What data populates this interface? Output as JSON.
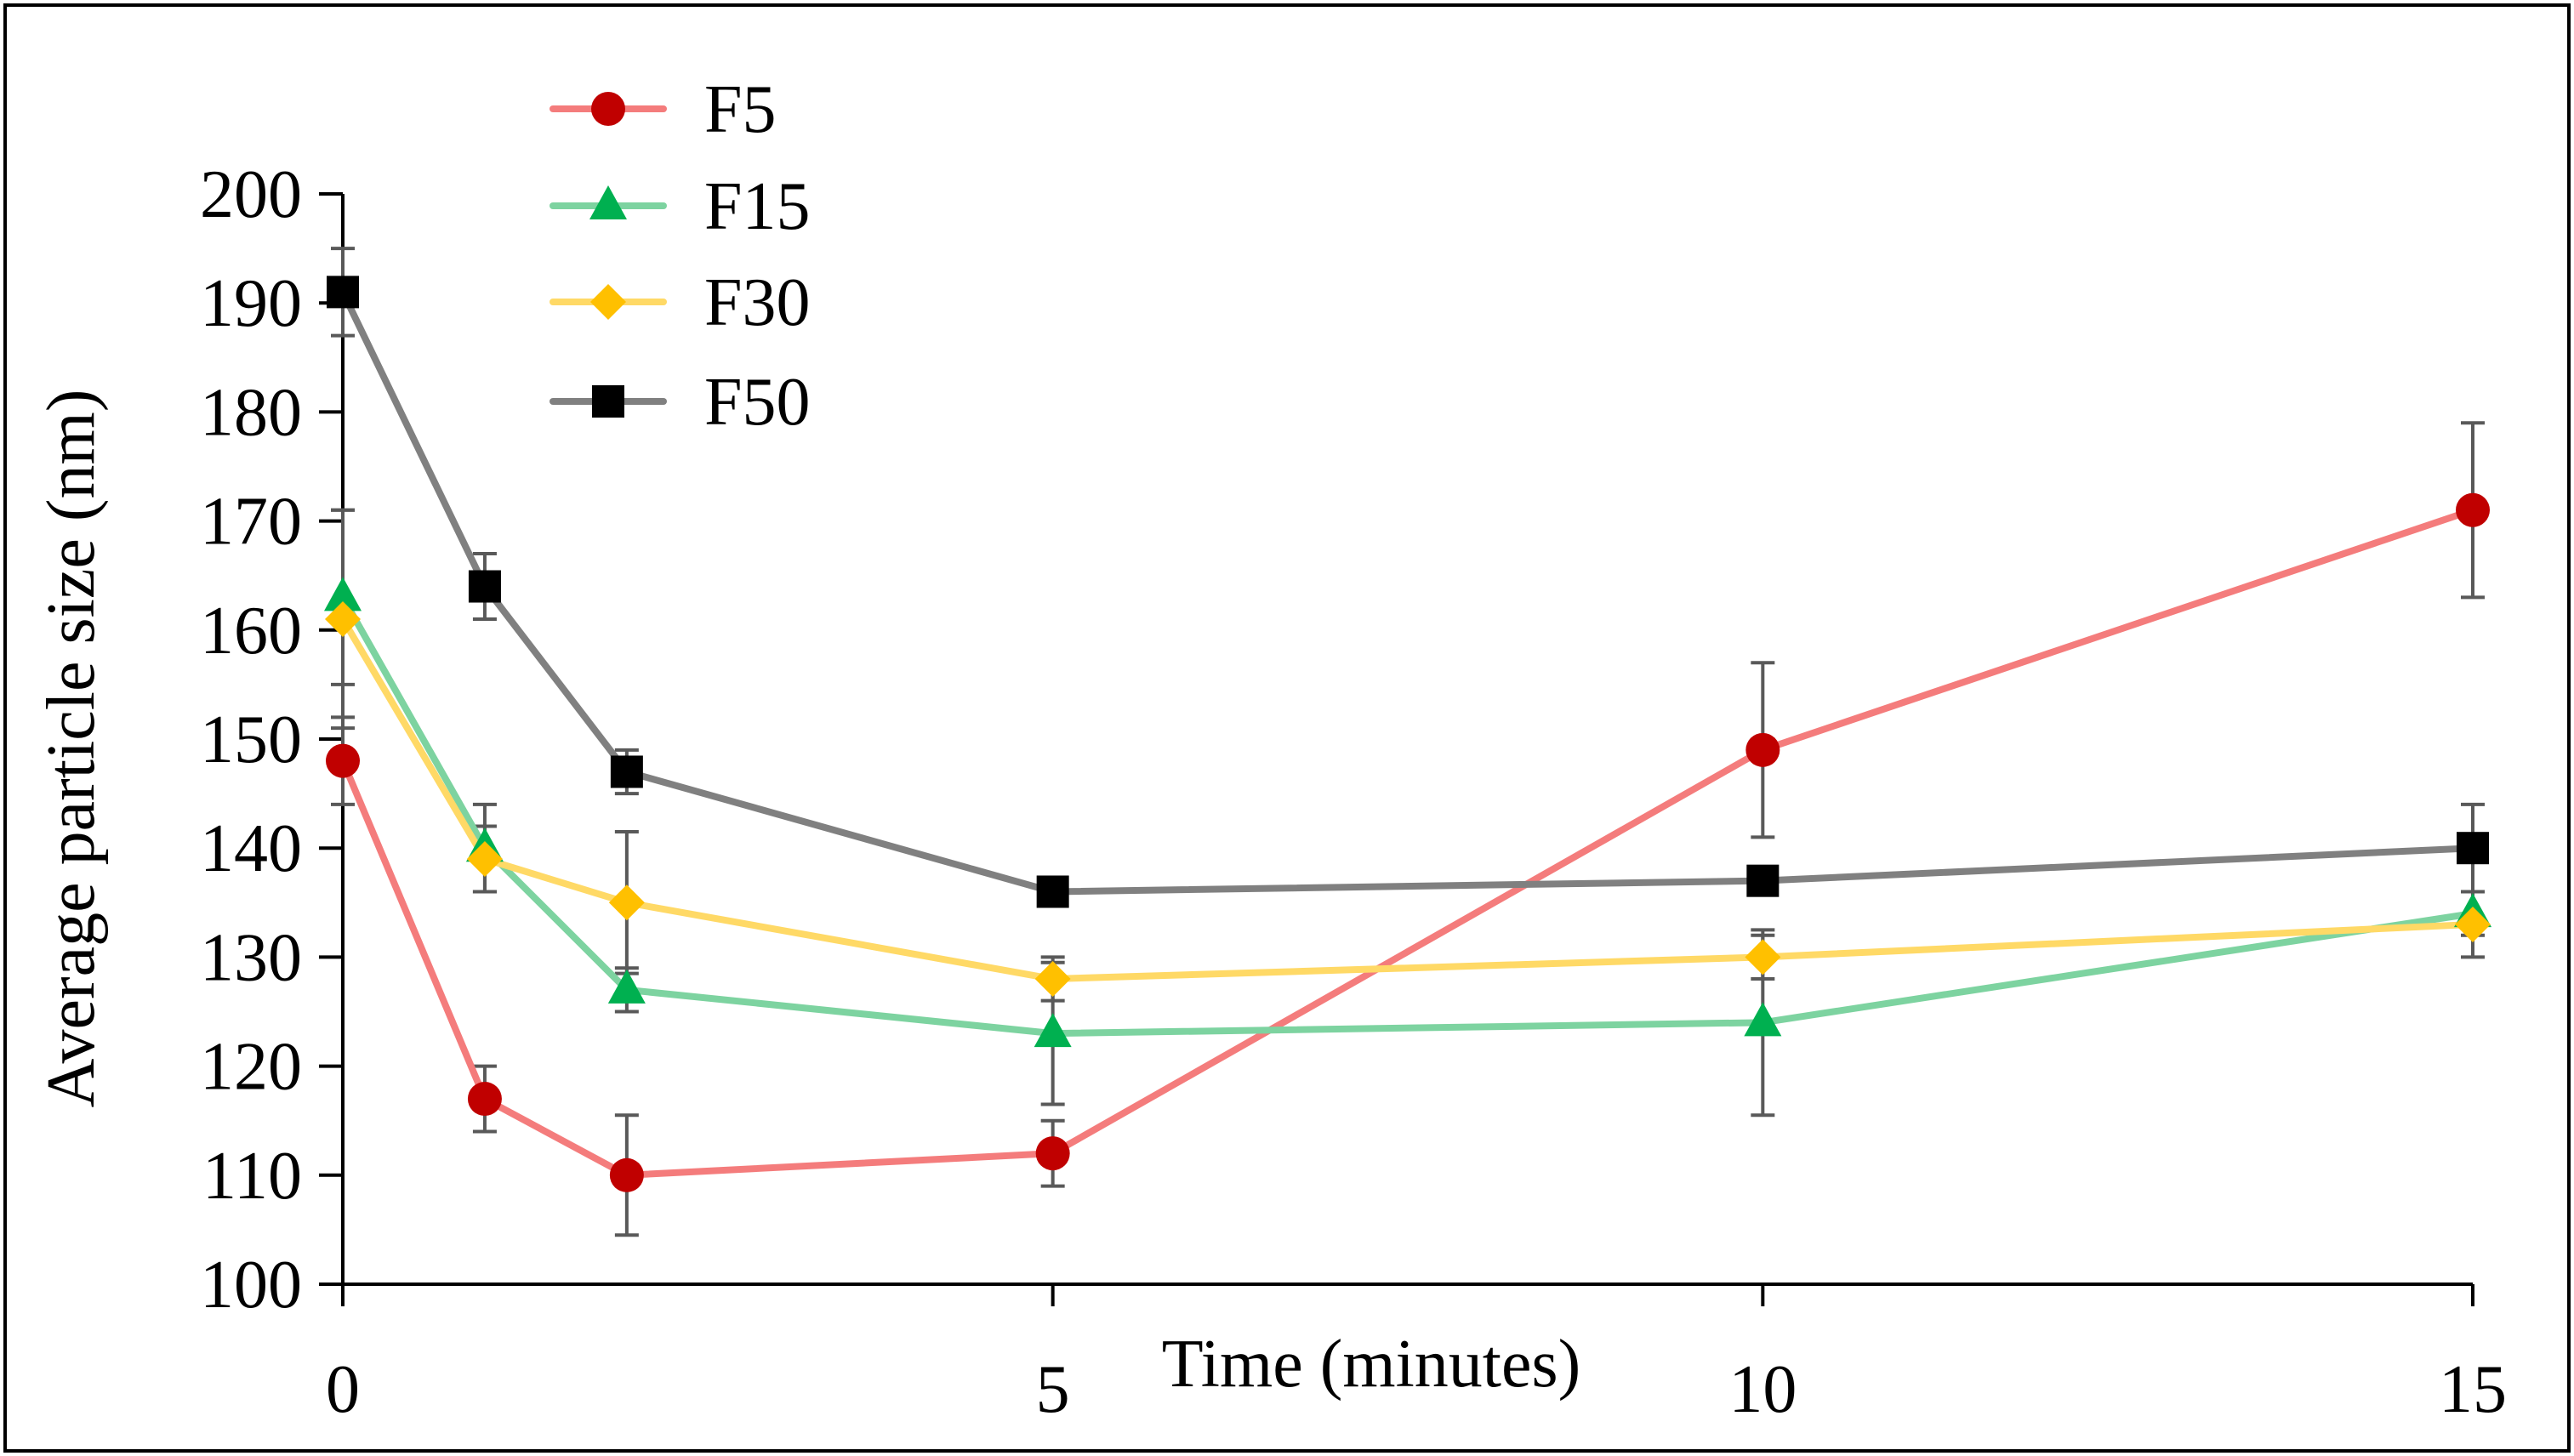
{
  "chart_data": {
    "type": "line",
    "title": "",
    "xlabel": "Time (minutes)",
    "ylabel": "Average particle size (nm)",
    "xlim": [
      0,
      15
    ],
    "ylim": [
      100,
      200
    ],
    "x_ticks": [
      0,
      5,
      10,
      15
    ],
    "y_ticks": [
      100,
      110,
      120,
      130,
      140,
      150,
      160,
      170,
      180,
      190,
      200
    ],
    "grid": false,
    "legend_position": "top-left",
    "x": [
      0,
      1,
      2,
      5,
      10,
      15
    ],
    "series": [
      {
        "name": "F5",
        "line_color": "#f47c7c",
        "marker_color": "#c00000",
        "marker": "circle",
        "values": [
          148,
          117,
          110,
          112,
          149,
          171
        ],
        "errors": [
          4,
          3,
          5.5,
          3,
          8,
          8
        ]
      },
      {
        "name": "F15",
        "line_color": "#7dd3a0",
        "marker_color": "#00b050",
        "marker": "triangle",
        "values": [
          163,
          140,
          127,
          123,
          124,
          134
        ],
        "errors": [
          8,
          4,
          2,
          6.5,
          8.5,
          2
        ]
      },
      {
        "name": "F30",
        "line_color": "#ffd966",
        "marker_color": "#ffc000",
        "marker": "diamond",
        "values": [
          161,
          139,
          135,
          128,
          130,
          133
        ],
        "errors": [
          10,
          3,
          6.5,
          2,
          2,
          3
        ]
      },
      {
        "name": "F50",
        "line_color": "#808080",
        "marker_color": "#000000",
        "marker": "square",
        "values": [
          191,
          164,
          147,
          136,
          137,
          140
        ],
        "errors": [
          4,
          3,
          2,
          0.5,
          0.5,
          4
        ]
      }
    ]
  }
}
